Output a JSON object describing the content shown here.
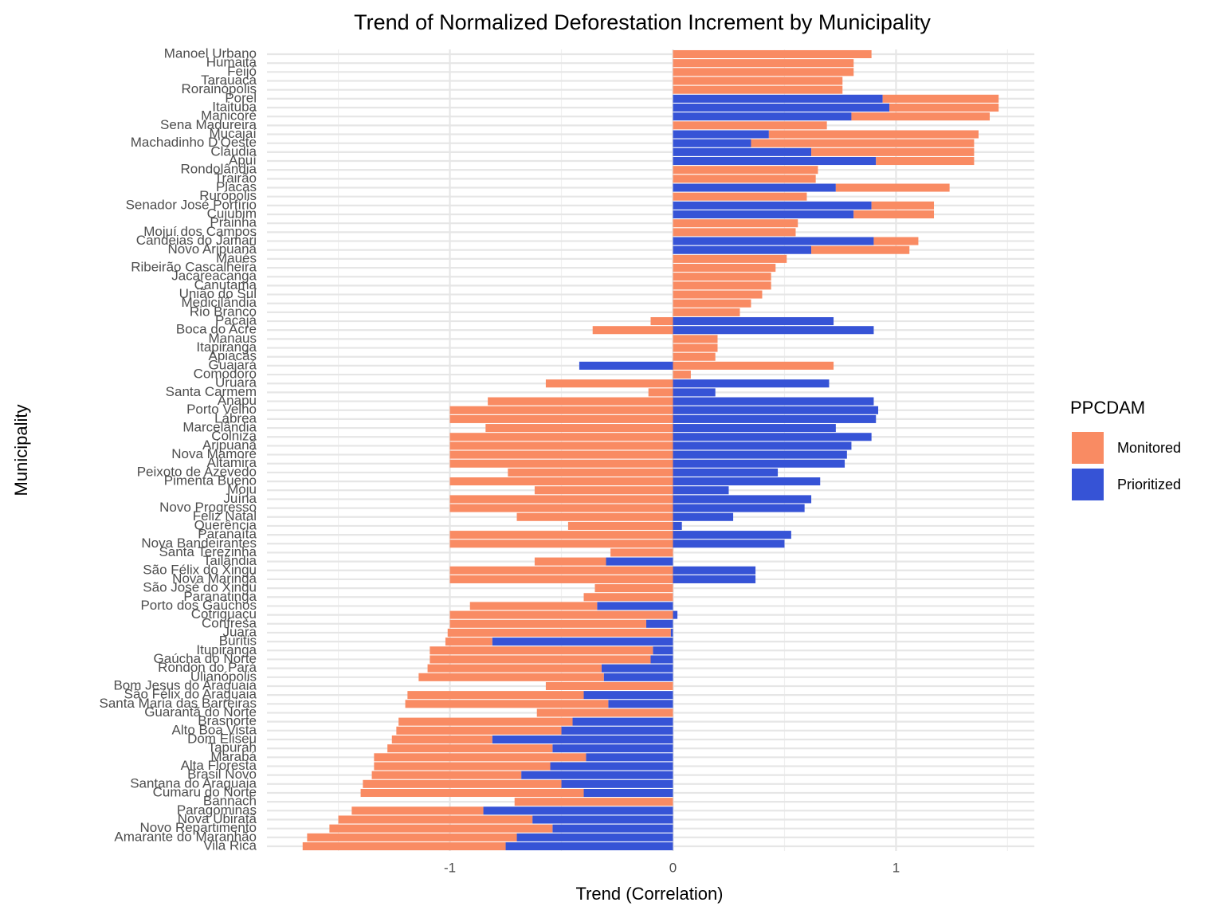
{
  "chart_data": {
    "type": "stacked-barh",
    "title": "Trend of Normalized Deforestation Increment by Municipality",
    "x_label": "Trend (Correlation)",
    "y_label": "Municipality",
    "legend_title": "PPCDAM",
    "categories": [
      "Manoel Urbano",
      "Humaitá",
      "Feijó",
      "Tarauacá",
      "Rorainópolis",
      "Porel",
      "Itaituba",
      "Manicoré",
      "Sena Madureira",
      "Mucajaí",
      "Machadinho D'Oeste",
      "Cláudia",
      "Apuí",
      "Rondolândia",
      "Trairão",
      "Placas",
      "Rurópolis",
      "Senador José Porfírio",
      "Cujubim",
      "Prainha",
      "Mojuí dos Campos",
      "Candeias do Jamari",
      "Novo Aripuanã",
      "Maués",
      "Ribeirão Cascalheira",
      "Jacareacanga",
      "Canutama",
      "União do Sul",
      "Medicilândia",
      "Rio Branco",
      "Pacajá",
      "Boca do Acre",
      "Manaus",
      "Itapiranga",
      "Apiacás",
      "Guajará",
      "Comodoro",
      "Uruará",
      "Santa Carmem",
      "Anapu",
      "Porto Velho",
      "Lábrea",
      "Marcelândia",
      "Colniza",
      "Aripuanã",
      "Nova Mamoré",
      "Altamira",
      "Peixoto de Azevedo",
      "Pimenta Bueno",
      "Moju",
      "Juína",
      "Novo Progresso",
      "Feliz Natal",
      "Querência",
      "Paranaíta",
      "Nova Bandeirantes",
      "Santa Terezinha",
      "Tailândia",
      "São Félix do Xingu",
      "Nova Maringá",
      "São José do Xingu",
      "Paranatinga",
      "Porto dos Gaúchos",
      "Cotriguaçu",
      "Confresa",
      "Juara",
      "Buritis",
      "Itupiranga",
      "Gaúcha do Norte",
      "Rondon do Pará",
      "Ulianópolis",
      "Bom Jesus do Araguaia",
      "São Félix do Araguaia",
      "Santa Maria das Barreiras",
      "Guarantã do Norte",
      "Brasnorte",
      "Alto Boa Vista",
      "Dom Eliseu",
      "Tapurah",
      "Marabá",
      "Alta Floresta",
      "Brasil Novo",
      "Santana do Araguaia",
      "Cumaru do Norte",
      "Bannach",
      "Paragominas",
      "Nova Ubiratã",
      "Novo Repartimento",
      "Amarante do Maranhão",
      "Vila Rica"
    ],
    "series": [
      {
        "name": "Monitored",
        "color": "#f98b63",
        "values": [
          0.89,
          0.81,
          0.81,
          0.76,
          0.76,
          0.52,
          0.49,
          0.62,
          0.69,
          0.94,
          1.0,
          0.73,
          0.44,
          0.65,
          0.64,
          0.51,
          0.6,
          0.28,
          0.36,
          0.56,
          0.55,
          0.2,
          0.44,
          0.51,
          0.46,
          0.44,
          0.44,
          0.4,
          0.35,
          0.3,
          -0.1,
          -0.36,
          0.2,
          0.2,
          0.19,
          0.72,
          0.08,
          -0.57,
          -0.11,
          -0.83,
          -1.0,
          -1.0,
          -0.84,
          -1.0,
          -1.0,
          -1.0,
          -1.0,
          -0.74,
          -1.0,
          -0.62,
          -1.0,
          -1.0,
          -0.7,
          -0.47,
          -1.0,
          -1.0,
          -0.28,
          -0.32,
          -1.0,
          -1.0,
          -0.35,
          -0.4,
          -0.57,
          -1.0,
          -0.88,
          -1.0,
          -0.21,
          -1.0,
          -0.99,
          -0.78,
          -0.83,
          -0.57,
          -0.79,
          -0.91,
          -0.61,
          -0.78,
          -0.74,
          -0.45,
          -0.74,
          -0.95,
          -0.79,
          -0.67,
          -0.89,
          -1.0,
          -0.71,
          -0.59,
          -0.87,
          -1.0,
          -0.94,
          -0.91
        ]
      },
      {
        "name": "Prioritized",
        "color": "#3653d6",
        "values": [
          null,
          null,
          null,
          null,
          null,
          0.94,
          0.97,
          0.8,
          null,
          0.43,
          0.35,
          0.62,
          0.91,
          null,
          null,
          0.73,
          null,
          0.89,
          0.81,
          null,
          null,
          0.9,
          0.62,
          null,
          null,
          null,
          null,
          null,
          null,
          null,
          0.72,
          0.9,
          null,
          null,
          null,
          -0.42,
          null,
          0.7,
          0.19,
          0.9,
          0.92,
          0.91,
          0.73,
          0.89,
          0.8,
          0.78,
          0.77,
          0.47,
          0.66,
          0.25,
          0.62,
          0.59,
          0.27,
          0.04,
          0.53,
          0.5,
          null,
          -0.3,
          0.37,
          0.37,
          null,
          null,
          -0.34,
          0.02,
          -0.12,
          -0.01,
          -0.81,
          -0.09,
          -0.1,
          -0.32,
          -0.31,
          null,
          -0.4,
          -0.29,
          null,
          -0.45,
          -0.5,
          -0.81,
          -0.54,
          -0.39,
          -0.55,
          -0.68,
          -0.5,
          -0.4,
          null,
          -0.85,
          -0.63,
          -0.54,
          -0.7,
          -0.75
        ]
      }
    ],
    "xlim": [
      -1.82,
      1.62
    ],
    "xticks": [
      -1,
      0,
      1
    ],
    "minor_xticks": [
      -1.5,
      -0.5,
      0.5,
      1.5
    ],
    "grid": true
  }
}
